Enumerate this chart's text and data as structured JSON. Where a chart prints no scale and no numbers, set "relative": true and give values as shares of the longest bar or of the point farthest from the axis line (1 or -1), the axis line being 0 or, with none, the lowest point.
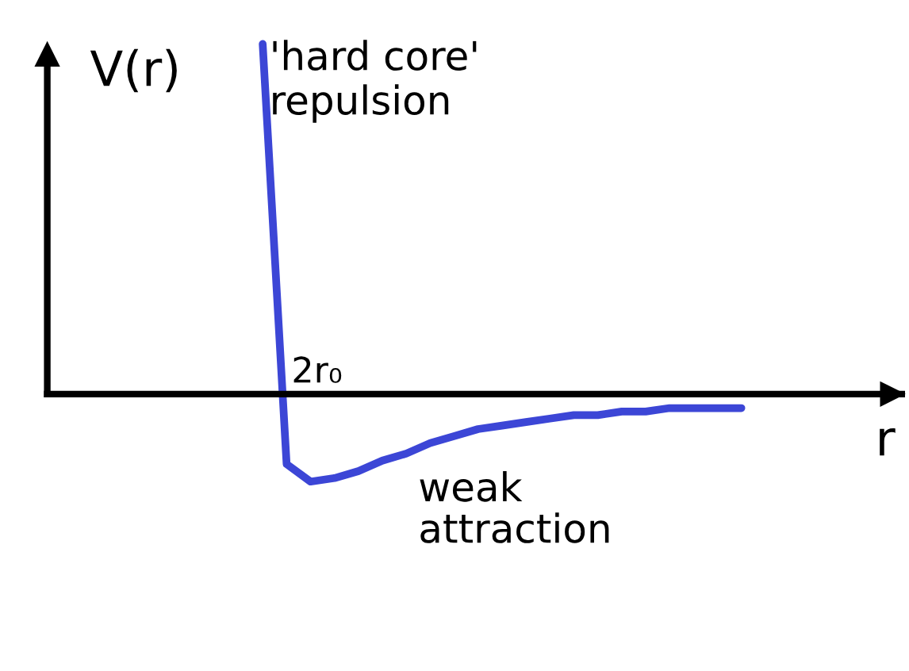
{
  "chart_data": {
    "type": "line",
    "relative": true,
    "xlabel": "r",
    "ylabel": "V(r)",
    "categories": [
      null,
      null,
      null,
      null,
      null,
      null,
      null,
      null,
      null,
      null,
      null,
      null,
      null,
      null,
      null,
      null,
      null,
      null,
      null,
      null,
      null,
      null,
      null,
      null,
      null,
      null,
      null,
      null,
      null,
      null
    ],
    "series": [
      {
        "color": "#3c46d6",
        "values": [
          null,
          null,
          null,
          null,
          null,
          null,
          null,
          null,
          null,
          1.0,
          -0.2,
          -0.25,
          -0.24,
          -0.22,
          -0.19,
          -0.17,
          -0.14,
          -0.12,
          -0.1,
          -0.09,
          -0.08,
          -0.07,
          -0.06,
          -0.06,
          -0.05,
          -0.05,
          -0.04,
          -0.04,
          -0.04,
          -0.04
        ]
      }
    ],
    "annotations": [
      "'hard core'\nrepulsion",
      "2r₀",
      "weak\nattraction"
    ],
    "marker": "none",
    "line_style": "solid"
  }
}
